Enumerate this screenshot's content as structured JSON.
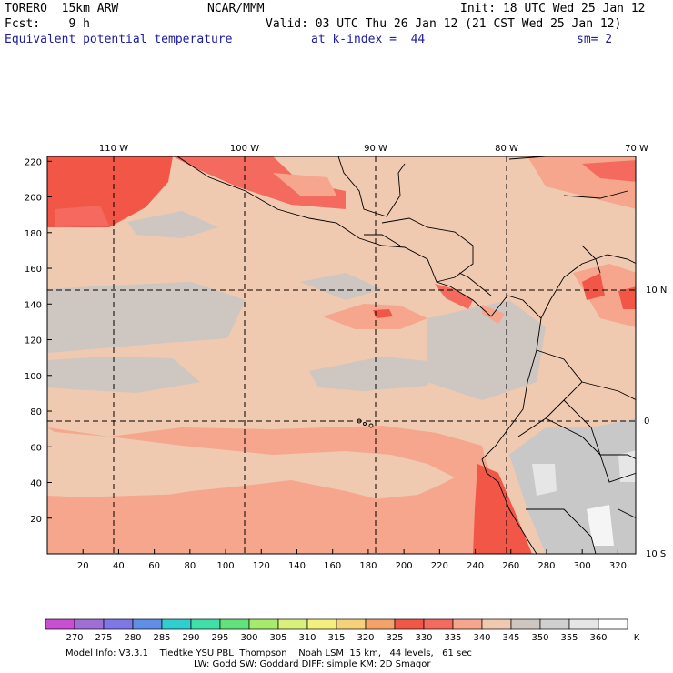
{
  "header": {
    "model": "TORERO  15km ARW",
    "org": "NCAR/MMM",
    "init": "Init: 18 UTC Wed 25 Jan 12",
    "fcst": "Fcst:    9 h",
    "valid": "Valid: 03 UTC Thu 26 Jan 12 (21 CST Wed 25 Jan 12)",
    "field": "Equivalent potential temperature",
    "level": "at k-index =  44",
    "smooth": "sm= 2"
  },
  "map": {
    "top_lon_labels": [
      "110 W",
      "100 W",
      "90 W",
      "80 W",
      "70 W"
    ],
    "right_lat_labels": [
      "10 N",
      "0",
      "10 S"
    ],
    "left_y_ticks": [
      "20",
      "40",
      "60",
      "80",
      "100",
      "120",
      "140",
      "160",
      "180",
      "200",
      "220"
    ],
    "bottom_x_ticks": [
      "20",
      "40",
      "60",
      "80",
      "100",
      "120",
      "140",
      "160",
      "180",
      "200",
      "220",
      "240",
      "260",
      "280",
      "300",
      "320"
    ]
  },
  "colorbar": {
    "levels": [
      "270",
      "275",
      "280",
      "285",
      "290",
      "295",
      "300",
      "305",
      "310",
      "315",
      "320",
      "325",
      "330",
      "335",
      "340",
      "345",
      "350",
      "355",
      "360"
    ],
    "unit": "K",
    "colors": [
      "#c84fd2",
      "#9f6fd6",
      "#7f77e6",
      "#5f8ee6",
      "#2fcfcf",
      "#3fdfa8",
      "#5fe37a",
      "#a6ec6a",
      "#d9f07a",
      "#f3f07e",
      "#f5d27a",
      "#f5a268",
      "#f25646",
      "#f46a5e",
      "#f5a68d",
      "#efc9b0",
      "#cdc6c1",
      "#d0d0d0",
      "#e6e6e6",
      "#ffffff"
    ]
  },
  "footer": {
    "line1": "Model Info: V3.3.1    Tiedtke YSU PBL  Thompson    Noah LSM  15 km,   44 levels,   61 sec",
    "line2": "LW: Godd SW: Goddard DIFF: simple KM: 2D Smagor"
  }
}
